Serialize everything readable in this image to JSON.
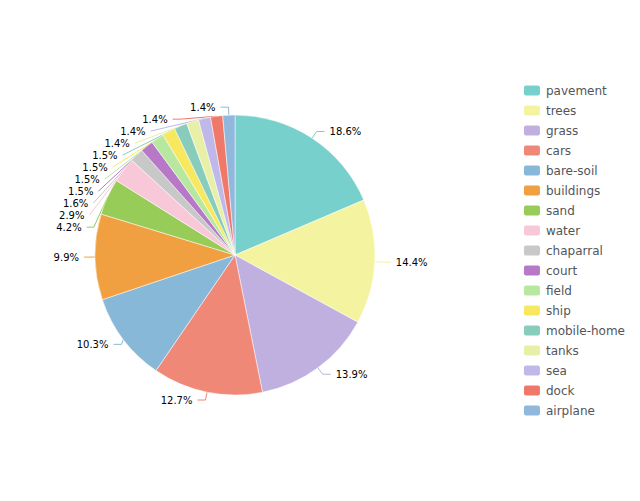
{
  "chart_data": {
    "type": "pie",
    "categories": [
      "pavement",
      "trees",
      "grass",
      "cars",
      "bare-soil",
      "buildings",
      "sand",
      "water",
      "chaparral",
      "court",
      "field",
      "ship",
      "mobile-home",
      "tanks",
      "sea",
      "dock",
      "airplane"
    ],
    "values": [
      18.6,
      14.4,
      13.9,
      12.7,
      10.3,
      9.9,
      4.2,
      2.9,
      1.6,
      1.5,
      1.5,
      1.5,
      1.5,
      1.4,
      1.4,
      1.4,
      1.4
    ],
    "value_labels": [
      "18.6%",
      "14.4%",
      "13.9%",
      "12.7%",
      "10.3%",
      "9.9%",
      "4.2%",
      "2.9%",
      "1.6%",
      "1.5%",
      "1.5%",
      "1.5%",
      "1.5%",
      "1.4%",
      "1.4%",
      "1.4%",
      "1.4%"
    ],
    "colors": [
      "#78d0cc",
      "#f4f4a0",
      "#c0b0e0",
      "#f08878",
      "#88b8d8",
      "#f0a040",
      "#98cc58",
      "#f8c8d8",
      "#c8c8c8",
      "#b878c8",
      "#b8e8a0",
      "#f8e860",
      "#88ccbc",
      "#e8f0a8",
      "#c0b8e8",
      "#f07868",
      "#90b8dc"
    ],
    "data_labels": true,
    "legend": "right"
  }
}
